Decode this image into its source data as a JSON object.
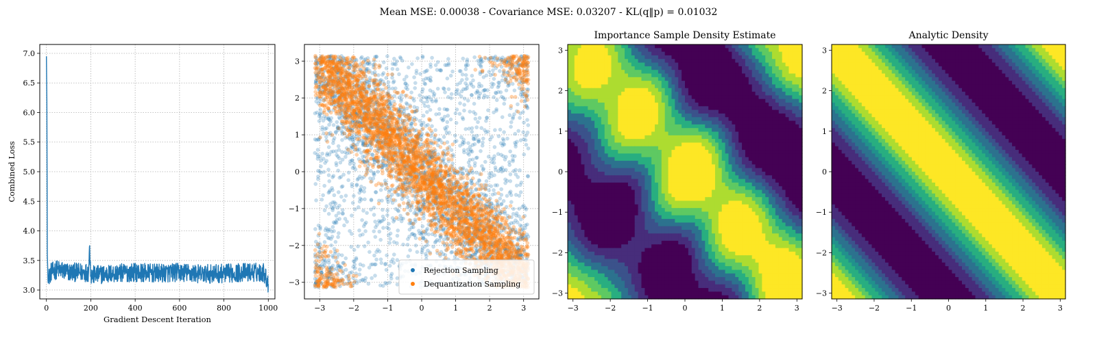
{
  "figure": {
    "suptitle": "Mean MSE: 0.00038 - Covariance MSE: 0.03207 - KL(q‖p) = 0.01032"
  },
  "colors": {
    "series_blue": "#1f77b4",
    "series_orange": "#ff7f0e",
    "viridis": [
      "#440154",
      "#472d7b",
      "#3b528b",
      "#2c728e",
      "#21918c",
      "#28ae80",
      "#5ec962",
      "#addc30",
      "#fde725"
    ]
  },
  "chart_data": [
    {
      "id": "loss",
      "type": "line",
      "title": "",
      "xlabel": "Gradient Descent Iteration",
      "ylabel": "Combined Loss",
      "xlim": [
        -30,
        1030
      ],
      "ylim": [
        2.85,
        7.15
      ],
      "xticks": [
        0,
        200,
        400,
        600,
        800,
        1000
      ],
      "xtick_labels": [
        "0",
        "200",
        "400",
        "600",
        "800",
        "1000"
      ],
      "yticks": [
        3.0,
        3.5,
        4.0,
        4.5,
        5.0,
        5.5,
        6.0,
        6.5,
        7.0
      ],
      "ytick_labels": [
        "3.0",
        "3.5",
        "4.0",
        "4.5",
        "5.0",
        "5.5",
        "6.0",
        "6.5",
        "7.0"
      ],
      "grid": true,
      "series": [
        {
          "color": "#1f77b4",
          "points": [
            [
              0,
              6.95
            ],
            [
              2,
              6.2
            ],
            [
              4,
              3.6
            ],
            [
              6,
              3.35
            ],
            [
              10,
              3.2
            ],
            [
              20,
              3.3
            ],
            [
              50,
              3.35
            ],
            [
              100,
              3.3
            ],
            [
              150,
              3.3
            ],
            [
              190,
              3.3
            ],
            [
              195,
              3.75
            ],
            [
              200,
              3.25
            ],
            [
              300,
              3.28
            ],
            [
              400,
              3.3
            ],
            [
              500,
              3.28
            ],
            [
              600,
              3.3
            ],
            [
              700,
              3.27
            ],
            [
              800,
              3.28
            ],
            [
              900,
              3.3
            ],
            [
              980,
              3.3
            ],
            [
              1000,
              3.1
            ]
          ],
          "noise_amplitude": 0.16
        }
      ]
    },
    {
      "id": "samples",
      "type": "scatter",
      "title": "",
      "xlim": [
        -3.45,
        3.45
      ],
      "ylim": [
        -3.45,
        3.45
      ],
      "xticks": [
        -3,
        -2,
        -1,
        0,
        1,
        2,
        3
      ],
      "xtick_labels": [
        "−3",
        "−2",
        "−1",
        "0",
        "1",
        "2",
        "3"
      ],
      "yticks": [
        -3,
        -2,
        -1,
        0,
        1,
        2,
        3
      ],
      "ytick_labels": [
        "−3",
        "−2",
        "−1",
        "0",
        "1",
        "2",
        "3"
      ],
      "grid": true,
      "legend_position": "lower-right",
      "domain": [
        -3.1416,
        3.1416
      ],
      "series": [
        {
          "name": "Rejection Sampling",
          "color": "#1f77b4",
          "alpha": 0.25,
          "count": 3200,
          "distribution": "uniform-plus-band",
          "band_center": 0.0,
          "band_width": 1.4
        },
        {
          "name": "Dequantization Sampling",
          "color": "#ff7f0e",
          "alpha": 0.35,
          "count": 3800,
          "distribution": "band",
          "band_center": 0.0,
          "band_width": 1.0
        }
      ]
    },
    {
      "id": "importance",
      "type": "heatmap",
      "title": "Importance Sample Density Estimate",
      "xlim": [
        -3.1416,
        3.1416
      ],
      "ylim": [
        -3.1416,
        3.1416
      ],
      "xticks": [
        -3,
        -2,
        -1,
        0,
        1,
        2,
        3
      ],
      "xtick_labels": [
        "−3",
        "−2",
        "−1",
        "0",
        "1",
        "2",
        "3"
      ],
      "yticks": [
        -3,
        -2,
        -1,
        0,
        1,
        2,
        3
      ],
      "ytick_labels": [
        "−3",
        "−2",
        "−1",
        "0",
        "1",
        "2",
        "3"
      ],
      "grid": false,
      "levels": 8
    },
    {
      "id": "analytic",
      "type": "heatmap",
      "title": "Analytic Density",
      "xlim": [
        -3.1416,
        3.1416
      ],
      "ylim": [
        -3.1416,
        3.1416
      ],
      "xticks": [
        -3,
        -2,
        -1,
        0,
        1,
        2,
        3
      ],
      "xtick_labels": [
        "−3",
        "−2",
        "−1",
        "0",
        "1",
        "2",
        "3"
      ],
      "yticks": [
        -3,
        -2,
        -1,
        0,
        1,
        2,
        3
      ],
      "ytick_labels": [
        "−3",
        "−2",
        "−1",
        "0",
        "1",
        "2",
        "3"
      ],
      "grid": false,
      "levels": 9
    }
  ]
}
